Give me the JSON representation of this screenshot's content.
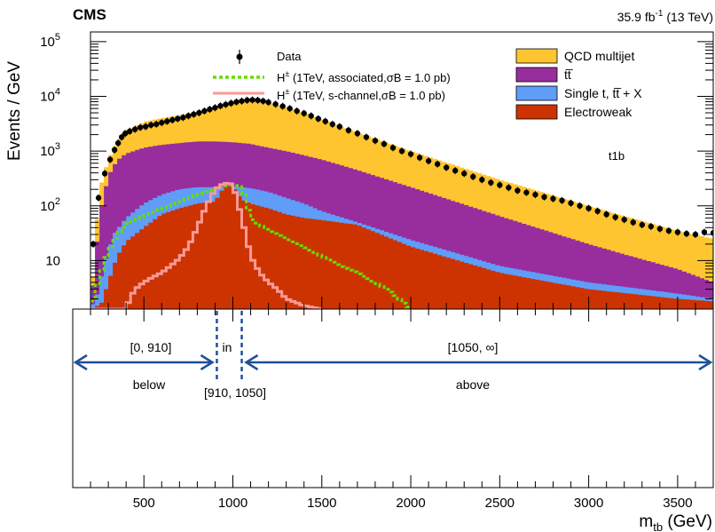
{
  "header": {
    "experiment": "CMS",
    "luminosity": "35.9 fb",
    "luminosity_sup": "-1",
    "energy": " (13 TeV)"
  },
  "category_label": "t1b",
  "axes": {
    "ylabel": "Events / GeV",
    "xlabel_main": "m",
    "xlabel_sub": "tb",
    "xlabel_unit": " (GeV)"
  },
  "legend": {
    "data": "Data",
    "signal_associated": "H",
    "signal_associated_rest": " (1TeV, associated,σB = 1.0 pb)",
    "signal_schannel": "H",
    "signal_schannel_rest": " (1TeV, s-channel,σB = 1.0 pb)",
    "charge_sup": "±",
    "qcd": "QCD multijet",
    "ttbar": "tt̅",
    "single_t": "Single t, tt̅ + X",
    "electroweak": "Electroweak"
  },
  "regions": {
    "below_range": "[0, 910]",
    "below_label": "below",
    "in_range": "[910, 1050]",
    "in_label": "in",
    "above_range": "[1050, ∞]",
    "above_label": "above"
  },
  "colors": {
    "qcd": "#fec530",
    "ttbar": "#982d9d",
    "single_t": "#5f9df9",
    "electroweak": "#cc3300",
    "signal_associated": "#66dd00",
    "signal_schannel": "#fa9a96",
    "region_arrows": "#1f4f9a"
  },
  "chart_data": {
    "type": "histogram",
    "x_range": [
      100,
      3700
    ],
    "y_range": [
      1.3,
      150000
    ],
    "y_scale": "log",
    "x_ticks": [
      500,
      1000,
      1500,
      2000,
      2500,
      3000,
      3500
    ],
    "y_ticks": [
      {
        "value": 10,
        "label": "10"
      },
      {
        "value": 100,
        "label": "10",
        "exp": "2"
      },
      {
        "value": 1000,
        "label": "10",
        "exp": "3"
      },
      {
        "value": 10000,
        "label": "10",
        "exp": "4"
      },
      {
        "value": 100000,
        "label": "10",
        "exp": "5"
      }
    ],
    "region_boundaries": [
      910,
      1050
    ],
    "stack_order": [
      "electroweak",
      "single_t",
      "ttbar",
      "qcd"
    ],
    "stacked_curves": {
      "qcd": [
        [
          200,
          1.3
        ],
        [
          230,
          35
        ],
        [
          260,
          250
        ],
        [
          300,
          700
        ],
        [
          350,
          1500
        ],
        [
          400,
          2300
        ],
        [
          500,
          3400
        ],
        [
          600,
          4000
        ],
        [
          700,
          4500
        ],
        [
          800,
          5200
        ],
        [
          900,
          6200
        ],
        [
          1000,
          7500
        ],
        [
          1050,
          8200
        ],
        [
          1100,
          8600
        ],
        [
          1150,
          8300
        ],
        [
          1200,
          7600
        ],
        [
          1300,
          6300
        ],
        [
          1400,
          5000
        ],
        [
          1500,
          3800
        ],
        [
          1700,
          2200
        ],
        [
          2000,
          1000
        ],
        [
          2500,
          300
        ],
        [
          3000,
          100
        ],
        [
          3200,
          65
        ],
        [
          3500,
          35
        ],
        [
          3700,
          25
        ]
      ],
      "ttbar": [
        [
          200,
          1.3
        ],
        [
          230,
          14
        ],
        [
          260,
          90
        ],
        [
          300,
          350
        ],
        [
          350,
          680
        ],
        [
          400,
          900
        ],
        [
          500,
          1150
        ],
        [
          600,
          1300
        ],
        [
          700,
          1400
        ],
        [
          800,
          1500
        ],
        [
          900,
          1500
        ],
        [
          1000,
          1450
        ],
        [
          1100,
          1350
        ],
        [
          1200,
          1150
        ],
        [
          1300,
          1000
        ],
        [
          1500,
          700
        ],
        [
          1700,
          450
        ],
        [
          2000,
          220
        ],
        [
          2500,
          65
        ],
        [
          3000,
          20
        ],
        [
          3200,
          13
        ],
        [
          3500,
          7
        ],
        [
          3700,
          4
        ]
      ],
      "single_t": [
        [
          200,
          1.3
        ],
        [
          240,
          2.5
        ],
        [
          280,
          9
        ],
        [
          330,
          30
        ],
        [
          400,
          60
        ],
        [
          500,
          110
        ],
        [
          600,
          160
        ],
        [
          700,
          200
        ],
        [
          800,
          220
        ],
        [
          900,
          220
        ],
        [
          1000,
          230
        ],
        [
          1100,
          210
        ],
        [
          1200,
          180
        ],
        [
          1300,
          140
        ],
        [
          1400,
          110
        ],
        [
          1500,
          80
        ],
        [
          1700,
          50
        ],
        [
          2000,
          24
        ],
        [
          2500,
          8
        ],
        [
          3000,
          4
        ],
        [
          3500,
          2.5
        ],
        [
          3700,
          2
        ]
      ],
      "electroweak": [
        [
          200,
          1.3
        ],
        [
          260,
          1.6
        ],
        [
          300,
          4
        ],
        [
          350,
          12
        ],
        [
          400,
          22
        ],
        [
          500,
          40
        ],
        [
          600,
          70
        ],
        [
          700,
          90
        ],
        [
          800,
          110
        ],
        [
          900,
          120
        ],
        [
          950,
          220
        ],
        [
          1000,
          230
        ],
        [
          1050,
          130
        ],
        [
          1100,
          110
        ],
        [
          1200,
          90
        ],
        [
          1300,
          70
        ],
        [
          1400,
          60
        ],
        [
          1500,
          55
        ],
        [
          1700,
          45
        ],
        [
          2000,
          18
        ],
        [
          2500,
          6
        ],
        [
          3000,
          3
        ],
        [
          3500,
          2
        ],
        [
          3700,
          1.8
        ]
      ]
    },
    "data_points": [
      [
        215,
        20
      ],
      [
        245,
        140
      ],
      [
        280,
        390
      ],
      [
        310,
        700
      ],
      [
        335,
        1050
      ],
      [
        355,
        1400
      ],
      [
        375,
        1800
      ],
      [
        395,
        2100
      ],
      [
        420,
        2300
      ],
      [
        450,
        2500
      ],
      [
        480,
        2700
      ],
      [
        510,
        2800
      ],
      [
        540,
        3000
      ],
      [
        570,
        3100
      ],
      [
        600,
        3300
      ],
      [
        630,
        3500
      ],
      [
        660,
        3700
      ],
      [
        690,
        3900
      ],
      [
        720,
        4100
      ],
      [
        750,
        4400
      ],
      [
        780,
        4700
      ],
      [
        810,
        5000
      ],
      [
        840,
        5400
      ],
      [
        870,
        5800
      ],
      [
        900,
        6200
      ],
      [
        930,
        6700
      ],
      [
        960,
        7100
      ],
      [
        990,
        7500
      ],
      [
        1020,
        7900
      ],
      [
        1050,
        8200
      ],
      [
        1080,
        8500
      ],
      [
        1110,
        8600
      ],
      [
        1140,
        8500
      ],
      [
        1170,
        8200
      ],
      [
        1200,
        7800
      ],
      [
        1240,
        7200
      ],
      [
        1280,
        6600
      ],
      [
        1320,
        6000
      ],
      [
        1360,
        5400
      ],
      [
        1400,
        4900
      ],
      [
        1440,
        4400
      ],
      [
        1480,
        3900
      ],
      [
        1520,
        3500
      ],
      [
        1560,
        3100
      ],
      [
        1600,
        2800
      ],
      [
        1650,
        2400
      ],
      [
        1700,
        2100
      ],
      [
        1750,
        1800
      ],
      [
        1800,
        1550
      ],
      [
        1850,
        1350
      ],
      [
        1900,
        1150
      ],
      [
        1950,
        1000
      ],
      [
        2000,
        880
      ],
      [
        2050,
        760
      ],
      [
        2100,
        660
      ],
      [
        2150,
        580
      ],
      [
        2200,
        500
      ],
      [
        2250,
        440
      ],
      [
        2300,
        390
      ],
      [
        2350,
        340
      ],
      [
        2400,
        300
      ],
      [
        2450,
        265
      ],
      [
        2500,
        240
      ],
      [
        2550,
        215
      ],
      [
        2600,
        190
      ],
      [
        2650,
        175
      ],
      [
        2700,
        160
      ],
      [
        2750,
        145
      ],
      [
        2800,
        135
      ],
      [
        2850,
        125
      ],
      [
        2900,
        112
      ],
      [
        2950,
        100
      ],
      [
        3000,
        90
      ],
      [
        3050,
        80
      ],
      [
        3100,
        70
      ],
      [
        3150,
        62
      ],
      [
        3200,
        56
      ],
      [
        3250,
        50
      ],
      [
        3300,
        45
      ],
      [
        3350,
        42
      ],
      [
        3400,
        38
      ],
      [
        3450,
        35
      ],
      [
        3500,
        33
      ],
      [
        3550,
        31
      ],
      [
        3600,
        30
      ],
      [
        3650,
        33
      ],
      [
        3700,
        32
      ]
    ],
    "signal_associated": [
      [
        200,
        1.3
      ],
      [
        250,
        5
      ],
      [
        300,
        15
      ],
      [
        350,
        30
      ],
      [
        400,
        45
      ],
      [
        450,
        55
      ],
      [
        500,
        65
      ],
      [
        550,
        80
      ],
      [
        600,
        90
      ],
      [
        650,
        100
      ],
      [
        700,
        120
      ],
      [
        750,
        140
      ],
      [
        800,
        160
      ],
      [
        850,
        175
      ],
      [
        900,
        200
      ],
      [
        950,
        230
      ],
      [
        1000,
        240
      ],
      [
        1050,
        220
      ],
      [
        1100,
        60
      ],
      [
        1150,
        45
      ],
      [
        1200,
        35
      ],
      [
        1250,
        30
      ],
      [
        1300,
        25
      ],
      [
        1400,
        18
      ],
      [
        1500,
        12
      ],
      [
        1600,
        8
      ],
      [
        1700,
        6
      ],
      [
        1800,
        4
      ],
      [
        1900,
        2.5
      ],
      [
        2000,
        1.3
      ]
    ],
    "signal_schannel": [
      [
        200,
        1.3
      ],
      [
        400,
        1.3
      ],
      [
        420,
        2
      ],
      [
        450,
        3
      ],
      [
        500,
        4
      ],
      [
        550,
        5
      ],
      [
        600,
        6
      ],
      [
        650,
        8
      ],
      [
        700,
        11
      ],
      [
        750,
        18
      ],
      [
        800,
        40
      ],
      [
        850,
        100
      ],
      [
        900,
        200
      ],
      [
        950,
        260
      ],
      [
        1000,
        250
      ],
      [
        1050,
        60
      ],
      [
        1100,
        12
      ],
      [
        1150,
        6
      ],
      [
        1200,
        4
      ],
      [
        1250,
        3
      ],
      [
        1300,
        2
      ],
      [
        1400,
        1.5
      ],
      [
        1500,
        1.3
      ]
    ]
  }
}
